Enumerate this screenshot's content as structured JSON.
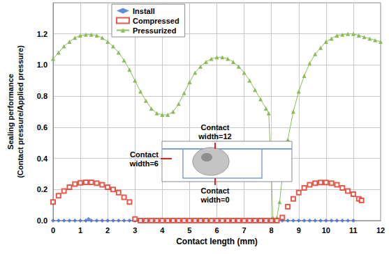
{
  "chart_data": {
    "type": "line",
    "xlabel": "Contact length (mm)",
    "ylabel": "Sealing performance\n(Contact pressure/Applied pressure)",
    "xlim": [
      0,
      12
    ],
    "xticks": [
      0,
      1,
      2,
      3,
      4,
      5,
      6,
      7,
      8,
      9,
      10,
      11,
      12
    ],
    "ylim": [
      0,
      1.4
    ],
    "yticks": [
      {
        "value": 0,
        "label": "0.0"
      },
      {
        "value": 0.2,
        "label": "0.2"
      },
      {
        "value": 0.4,
        "label": "0.4"
      },
      {
        "value": 0.6,
        "label": "0.6"
      },
      {
        "value": 0.8,
        "label": "0.8"
      },
      {
        "value": 1.0,
        "label": "1.0"
      },
      {
        "value": 1.2,
        "label": "1.2"
      }
    ],
    "grid": true,
    "legend": "upper left",
    "annotations": [
      {
        "text": "Contact\nwidth=12"
      },
      {
        "text": "Contact\nwidth=6"
      },
      {
        "text": "Contact\nwidth=0"
      }
    ],
    "series": [
      {
        "name": "Install",
        "type": "scatter",
        "color": "#3f6fce",
        "marker": "diamond",
        "line_style": "none",
        "x": [
          0,
          0.2,
          0.4,
          0.6,
          0.8,
          1,
          1.2,
          1.3,
          1.4,
          1.6,
          1.8,
          2,
          2.2,
          2.4,
          2.6,
          2.8,
          3,
          3.2,
          3.4,
          3.6,
          3.8,
          4,
          4.2,
          4.4,
          4.6,
          4.8,
          5,
          5.2,
          5.4,
          5.6,
          5.8,
          6,
          6.2,
          6.4,
          6.6,
          6.8,
          7,
          7.2,
          7.4,
          7.6,
          7.8,
          8,
          8.2,
          8.4,
          8.6,
          8.8,
          9,
          9.2,
          9.4,
          9.6,
          9.8,
          10,
          10.2,
          10.4,
          10.6,
          10.8,
          11
        ],
        "values": [
          0,
          0,
          0,
          0,
          0,
          0,
          0,
          0.01,
          0,
          0,
          0,
          0,
          0,
          0,
          0,
          0,
          0,
          0,
          0,
          0,
          0,
          0,
          0,
          0,
          0,
          0,
          0,
          0,
          0,
          0,
          0,
          0,
          0,
          0,
          0,
          0,
          0,
          0,
          0,
          0,
          0,
          0,
          0,
          0,
          0,
          0,
          0,
          0,
          0,
          0,
          0,
          0,
          0,
          0,
          0,
          0,
          0
        ]
      },
      {
        "name": "Compressed",
        "type": "scatter",
        "color": "#e0301e",
        "marker": "emptyRect",
        "line_style": "none",
        "x": [
          0,
          0.2,
          0.4,
          0.6,
          0.8,
          1,
          1.2,
          1.4,
          1.6,
          1.8,
          2,
          2.2,
          2.4,
          2.6,
          2.8,
          3,
          3.2,
          3.4,
          3.6,
          3.8,
          4,
          4.2,
          4.4,
          4.6,
          4.8,
          5,
          5.2,
          5.4,
          5.6,
          5.8,
          6,
          6.2,
          6.4,
          6.6,
          6.8,
          7,
          7.2,
          7.4,
          7.6,
          7.8,
          8,
          8.2,
          8.4,
          8.6,
          8.8,
          9,
          9.2,
          9.4,
          9.6,
          9.8,
          10,
          10.2,
          10.4,
          10.6,
          10.8,
          11,
          11.2,
          11.3
        ],
        "values": [
          0.12,
          0.16,
          0.19,
          0.215,
          0.235,
          0.243,
          0.246,
          0.246,
          0.24,
          0.23,
          0.215,
          0.2,
          0.18,
          0.15,
          0.12,
          0.01,
          0,
          0,
          0,
          0,
          0,
          0,
          0,
          0,
          0,
          0,
          0,
          0,
          0,
          0,
          0,
          0,
          0,
          0,
          0,
          0,
          0,
          0,
          0,
          0,
          0,
          0,
          0.02,
          0.09,
          0.14,
          0.18,
          0.21,
          0.23,
          0.24,
          0.245,
          0.245,
          0.24,
          0.23,
          0.21,
          0.19,
          0.17,
          0.14,
          0.13
        ]
      },
      {
        "name": "Pressurized",
        "type": "line",
        "color": "#8cbc58",
        "marker": "triangle",
        "line_style": "solid",
        "x": [
          0,
          0.2,
          0.4,
          0.6,
          0.8,
          1,
          1.2,
          1.4,
          1.6,
          1.8,
          2,
          2.2,
          2.4,
          2.6,
          2.8,
          3,
          3.2,
          3.4,
          3.6,
          3.8,
          4,
          4.2,
          4.4,
          4.6,
          4.8,
          5,
          5.2,
          5.4,
          5.6,
          5.8,
          6,
          6.2,
          6.4,
          6.6,
          6.8,
          7,
          7.2,
          7.4,
          7.6,
          7.8,
          7.9,
          8,
          8.05,
          8.1,
          8.2,
          8.3,
          8.4,
          8.6,
          8.8,
          9,
          9.2,
          9.4,
          9.6,
          9.8,
          10,
          10.2,
          10.4,
          10.6,
          10.8,
          11,
          11.2,
          11.4,
          11.6,
          11.8,
          12
        ],
        "values": [
          1.04,
          1.08,
          1.12,
          1.15,
          1.175,
          1.19,
          1.195,
          1.195,
          1.19,
          1.175,
          1.15,
          1.12,
          1.08,
          1.03,
          0.97,
          0.9,
          0.83,
          0.77,
          0.72,
          0.69,
          0.68,
          0.68,
          0.7,
          0.75,
          0.82,
          0.89,
          0.95,
          0.99,
          1.02,
          1.04,
          1.05,
          1.05,
          1.04,
          1.02,
          0.99,
          0.95,
          0.9,
          0.84,
          0.78,
          0.72,
          0.69,
          0.3,
          0.02,
          0,
          0.02,
          0.12,
          0.28,
          0.52,
          0.7,
          0.83,
          0.93,
          1.01,
          1.07,
          1.11,
          1.15,
          1.17,
          1.19,
          1.195,
          1.2,
          1.2,
          1.19,
          1.18,
          1.17,
          1.16,
          1.15
        ]
      }
    ]
  }
}
